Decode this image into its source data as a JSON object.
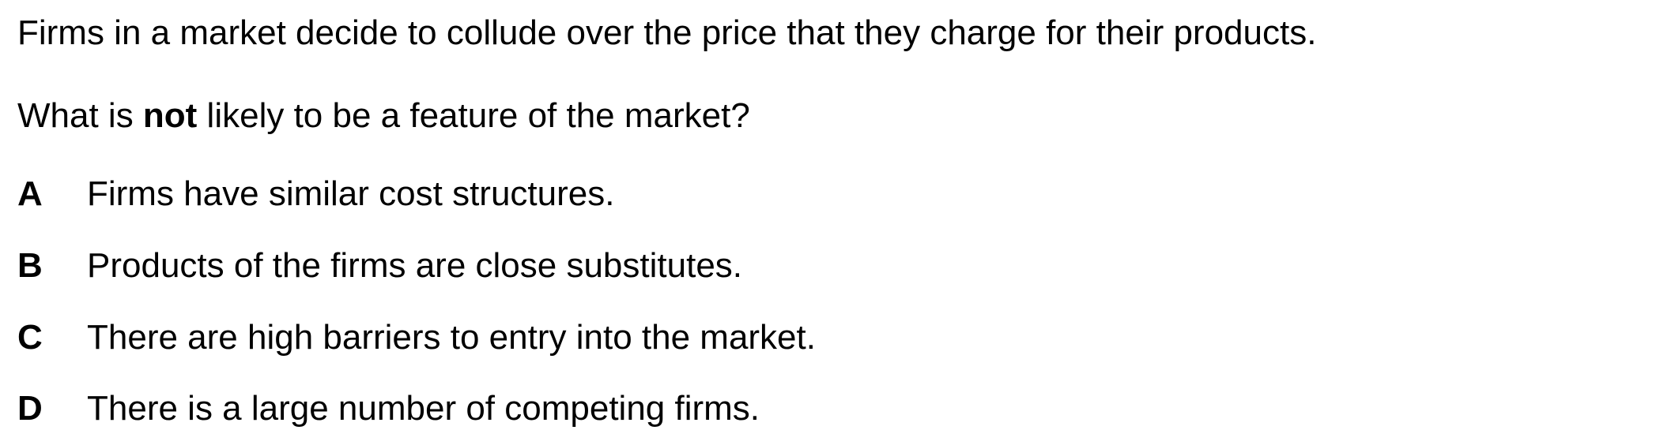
{
  "stem": "Firms in a market decide to collude over the price that they charge for their products.",
  "question": {
    "prefix": "What is ",
    "emphasis": "not",
    "suffix": " likely to be a feature of the market?"
  },
  "options": [
    {
      "letter": "A",
      "text": "Firms have similar cost structures."
    },
    {
      "letter": "B",
      "text": "Products of the firms are close substitutes."
    },
    {
      "letter": "C",
      "text": "There are high barriers to entry into the market."
    },
    {
      "letter": "D",
      "text": "There is a large number of competing firms."
    }
  ]
}
